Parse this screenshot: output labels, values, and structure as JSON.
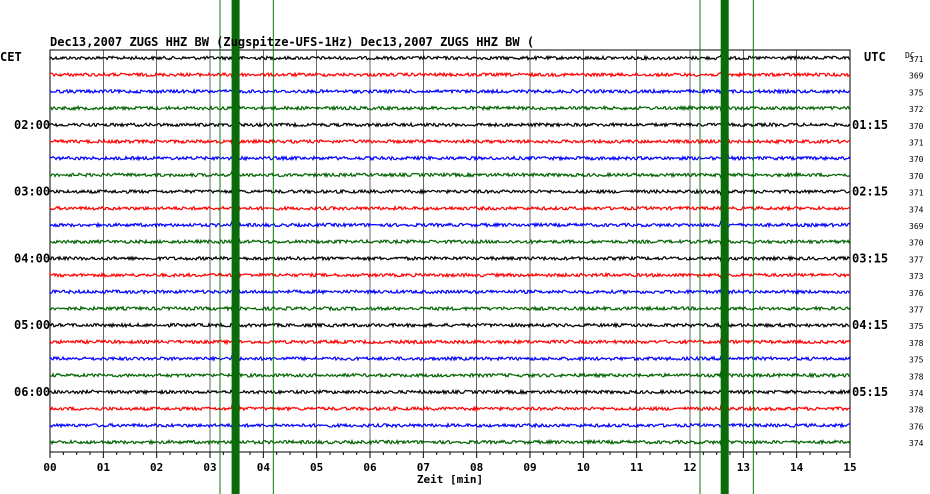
{
  "chart_data": {
    "type": "line",
    "title": "Dec13,2007   ZUGS HHZ BW (Zugspitze-UFS-1Hz) Dec13,2007   ZUGS HHZ BW (",
    "xlabel": "Zeit [min]",
    "xlim": [
      0,
      15
    ],
    "x_ticks": [
      "00",
      "01",
      "02",
      "03",
      "04",
      "05",
      "06",
      "07",
      "08",
      "09",
      "10",
      "11",
      "12",
      "13",
      "14",
      "15"
    ],
    "left_axis_title": "CET",
    "right_axis_title": "UTC",
    "dc_header": "DC",
    "left_hour_labels": [
      {
        "trace": 4,
        "label": "02:00"
      },
      {
        "trace": 8,
        "label": "03:00"
      },
      {
        "trace": 12,
        "label": "04:00"
      },
      {
        "trace": 16,
        "label": "05:00"
      },
      {
        "trace": 20,
        "label": "06:00"
      }
    ],
    "right_hour_labels": [
      {
        "trace": 4,
        "label": "01:15"
      },
      {
        "trace": 8,
        "label": "02:15"
      },
      {
        "trace": 12,
        "label": "03:15"
      },
      {
        "trace": 16,
        "label": "04:15"
      },
      {
        "trace": 20,
        "label": "05:15"
      }
    ],
    "dc_values": [
      "371",
      "369",
      "375",
      "372",
      "370",
      "371",
      "370",
      "370",
      "371",
      "374",
      "369",
      "370",
      "377",
      "373",
      "376",
      "377",
      "375",
      "378",
      "375",
      "378",
      "374",
      "378",
      "376",
      "374"
    ],
    "trace_colors": [
      "#000000",
      "#ff0000",
      "#0000ff",
      "#006400"
    ],
    "trace_count": 24,
    "events_min": [
      {
        "t": 3.48,
        "label": "strong vertical band"
      },
      {
        "t": 12.65,
        "label": "strong vertical band"
      }
    ],
    "marker_lines_min": [
      3.0,
      4.0,
      12.0,
      13.0
    ],
    "grid": true
  }
}
